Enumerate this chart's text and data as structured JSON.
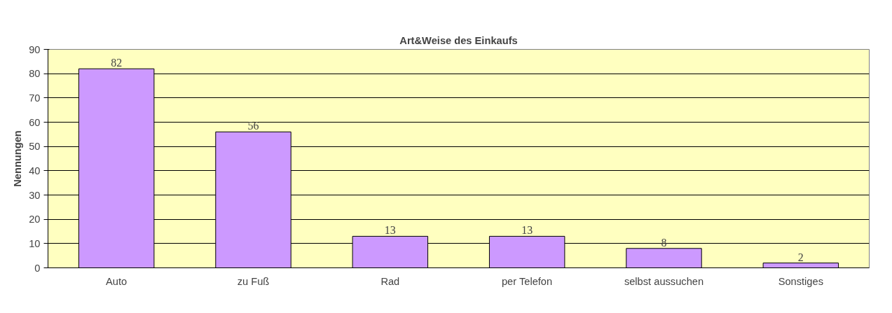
{
  "chart_data": {
    "type": "bar",
    "title": "Art&Weise des Einkaufs",
    "ylabel": "Nennungen",
    "categories": [
      "Auto",
      "zu Fuß",
      "Rad",
      "per Telefon",
      "selbst aussuchen",
      "Sonstiges"
    ],
    "values": [
      82,
      56,
      13,
      13,
      8,
      2
    ],
    "color": "#cc99ff",
    "ylim": [
      0,
      90
    ],
    "yticks": [
      0,
      10,
      20,
      30,
      40,
      50,
      60,
      70,
      80,
      90
    ],
    "grid": "y",
    "data_labels": true
  }
}
